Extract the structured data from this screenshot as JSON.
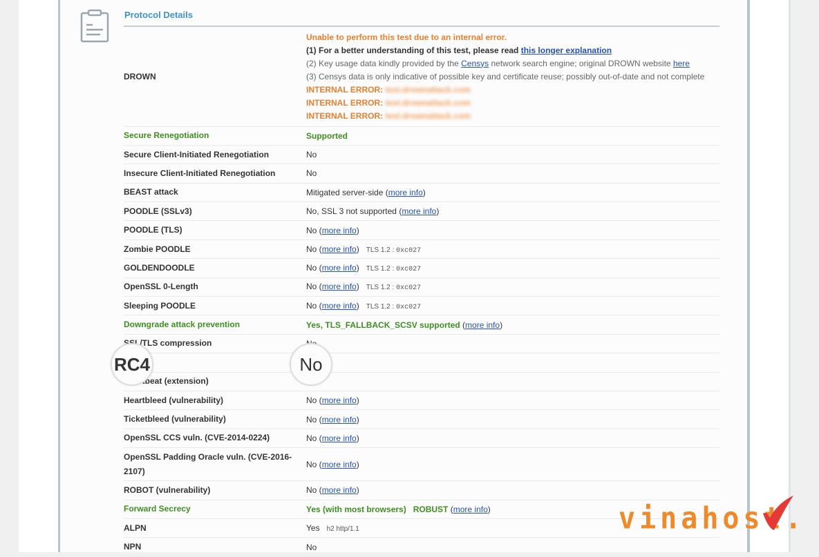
{
  "section": {
    "title": "Protocol Details",
    "icon": "clipboard-icon"
  },
  "drown": {
    "label": "DROWN",
    "error": "Unable to perform this test due to an internal error.",
    "line1_prefix": "(1) For a better understanding of this test, please read ",
    "line1_link": "this longer explanation",
    "line2_prefix": "(2) Key usage data kindly provided by the ",
    "line2_link1": "Censys",
    "line2_mid": " network search engine; original DROWN website ",
    "line2_link2": "here",
    "line3": "(3) Censys data is only indicative of possible key and certificate reuse; possibly out-of-date and not complete",
    "internal_errors": [
      {
        "label": "INTERNAL ERROR:",
        "host": "test.drownattack.com"
      },
      {
        "label": "INTERNAL ERROR:",
        "host": "test.drownattack.com"
      },
      {
        "label": "INTERNAL ERROR:",
        "host": "test.drownattack.com"
      }
    ]
  },
  "rows": [
    {
      "label": "Secure Renegotiation",
      "green": true,
      "value": "Supported",
      "value_green": true
    },
    {
      "label": "Secure Client-Initiated Renegotiation",
      "value": "No"
    },
    {
      "label": "Insecure Client-Initiated Renegotiation",
      "value": "No"
    },
    {
      "label": "BEAST attack",
      "value": "Mitigated server-side",
      "link": "more info"
    },
    {
      "label": "POODLE (SSLv3)",
      "value": "No, SSL 3 not supported",
      "link": "more info"
    },
    {
      "label": "POODLE (TLS)",
      "value": "No",
      "link": "more info"
    },
    {
      "label": "Zombie POODLE",
      "value": "No",
      "link": "more info",
      "note": "TLS 1.2 : ",
      "note_mono": "0xc027"
    },
    {
      "label": "GOLDENDOODLE",
      "value": "No",
      "link": "more info",
      "note": "TLS 1.2 : ",
      "note_mono": "0xc027"
    },
    {
      "label": "OpenSSL 0-Length",
      "value": "No",
      "link": "more info",
      "note": "TLS 1.2 : ",
      "note_mono": "0xc027"
    },
    {
      "label": "Sleeping POODLE",
      "value": "No",
      "link": "more info",
      "note": "TLS 1.2 : ",
      "note_mono": "0xc027"
    },
    {
      "label": "Downgrade attack prevention",
      "green": true,
      "value": "Yes, TLS_FALLBACK_SCSV supported",
      "value_green": true,
      "link": "more info"
    },
    {
      "label": "SSL/TLS compression",
      "value": "No"
    },
    {
      "label": "RC4",
      "value": "No"
    },
    {
      "label": "Heartbeat (extension)",
      "value": "No"
    },
    {
      "label": "Heartbleed (vulnerability)",
      "value": "No",
      "link": "more info"
    },
    {
      "label": "Ticketbleed (vulnerability)",
      "value": "No",
      "link": "more info"
    },
    {
      "label": "OpenSSL CCS vuln. (CVE-2014-0224)",
      "value": "No",
      "link": "more info"
    },
    {
      "label": "OpenSSL Padding Oracle vuln. (CVE-2016-2107)",
      "value": "No",
      "link": "more info"
    },
    {
      "label": "ROBOT (vulnerability)",
      "value": "No",
      "link": "more info"
    },
    {
      "label": "Forward Secrecy",
      "green": true,
      "value": "Yes (with most browsers)   ROBUST",
      "value_green": true,
      "link": "more info"
    },
    {
      "label": "ALPN",
      "value": "Yes",
      "note": "h2 http/1.1"
    },
    {
      "label": "NPN",
      "value": "No"
    }
  ],
  "magnifier": {
    "label": "RC4",
    "value": "No"
  },
  "watermark": {
    "text": "vinahost.",
    "colors": {
      "text": "#ef8a2b",
      "check": "#e53935"
    }
  }
}
